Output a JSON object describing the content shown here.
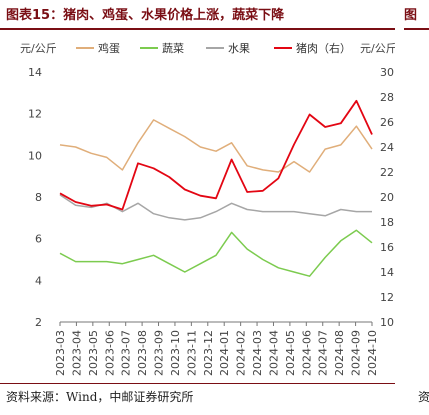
{
  "title": "图表15：猪肉、鸡蛋、水果价格上涨，蔬菜下降",
  "next_title_fragment": "图",
  "source": "资料来源：Wind，中邮证券研究所",
  "next_source_fragment": "资",
  "chart_data": {
    "type": "line",
    "left_unit": "元/公斤",
    "right_unit": "元/公斤",
    "left_ylim": [
      2,
      14
    ],
    "left_ticks": [
      2,
      4,
      6,
      8,
      10,
      12,
      14
    ],
    "right_ylim": [
      10,
      30
    ],
    "right_ticks": [
      10,
      12,
      14,
      16,
      18,
      20,
      22,
      24,
      26,
      28,
      30
    ],
    "x_tick_labels": [
      "2023-03",
      "2023-04",
      "2023-05",
      "2023-06",
      "2023-07",
      "2023-08",
      "2023-09",
      "2023-10",
      "2023-11",
      "2023-12",
      "2024-01",
      "2024-02",
      "2024-03",
      "2024-04",
      "2024-05",
      "2024-06",
      "2024-07",
      "2024-08",
      "2024-09",
      "2024-10"
    ],
    "x": [
      "2023-03",
      "2023-04",
      "2023-05",
      "2023-06",
      "2023-07",
      "2023-08",
      "2023-09",
      "2023-10",
      "2023-11",
      "2023-12",
      "2024-01",
      "2024-02",
      "2024-03",
      "2024-04",
      "2024-05",
      "2024-06",
      "2024-07",
      "2024-08",
      "2024-09",
      "2024-10",
      "2024-10"
    ],
    "series": [
      {
        "name": "鸡蛋",
        "axis": "left",
        "color": "#E0AE7A",
        "values": [
          10.5,
          10.4,
          10.1,
          9.9,
          9.3,
          10.6,
          11.7,
          11.3,
          10.9,
          10.4,
          10.2,
          10.6,
          9.5,
          9.3,
          9.2,
          9.7,
          9.2,
          10.3,
          10.5,
          11.4,
          10.3
        ]
      },
      {
        "name": "蔬菜",
        "axis": "left",
        "color": "#7CCB4F",
        "values": [
          5.3,
          4.9,
          4.9,
          4.9,
          4.8,
          5.0,
          5.2,
          4.8,
          4.4,
          4.8,
          5.2,
          6.3,
          5.5,
          5.0,
          4.6,
          4.4,
          4.2,
          5.1,
          5.9,
          6.4,
          5.8
        ]
      },
      {
        "name": "水果",
        "axis": "left",
        "color": "#A6A6A6",
        "values": [
          8.1,
          7.6,
          7.5,
          7.7,
          7.3,
          7.7,
          7.2,
          7.0,
          6.9,
          7.0,
          7.3,
          7.7,
          7.4,
          7.3,
          7.3,
          7.3,
          7.2,
          7.1,
          7.4,
          7.3,
          7.3
        ]
      },
      {
        "name": "猪肉（右）",
        "axis": "right",
        "color": "#E30613",
        "values": [
          20.3,
          19.6,
          19.3,
          19.4,
          19.0,
          22.7,
          22.3,
          21.6,
          20.6,
          20.1,
          19.9,
          23.0,
          20.4,
          20.5,
          21.5,
          24.2,
          26.6,
          25.6,
          25.9,
          27.7,
          25.0
        ]
      }
    ]
  }
}
